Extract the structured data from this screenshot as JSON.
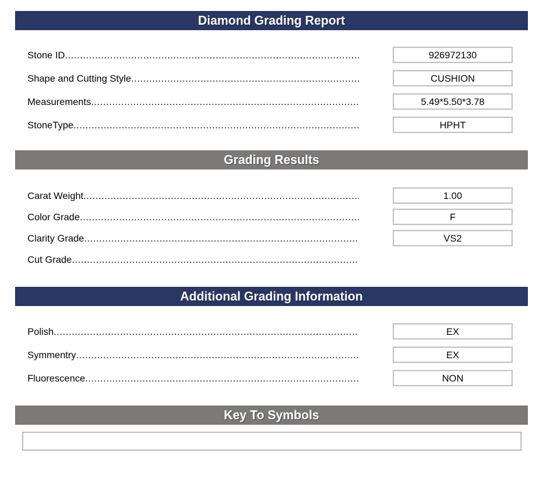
{
  "report": {
    "colors": {
      "navy_header": "#293764",
      "gray_header": "#7d7979",
      "box_border": "#c6c6c6"
    },
    "leader_dots": "................................................................................................................................................................................................",
    "sections": [
      {
        "title": "Diamond Grading Report",
        "style": "navy",
        "fields": [
          {
            "label": "Stone ID",
            "value": "926972130"
          },
          {
            "label": "Shape and Cutting Style",
            "value": "CUSHION"
          },
          {
            "label": "Measurements",
            "value": "5.49*5.50*3.78"
          },
          {
            "label": "StoneType",
            "value": "HPHT"
          }
        ]
      },
      {
        "title": "Grading Results",
        "style": "gray",
        "fields": [
          {
            "label": "Carat Weight",
            "value": "1.00"
          },
          {
            "label": "Color Grade",
            "value": "F"
          },
          {
            "label": "Clarity Grade",
            "value": "VS2"
          },
          {
            "label": "Cut Grade",
            "value": ""
          }
        ]
      },
      {
        "title": "Additional Grading Information",
        "style": "navy",
        "fields": [
          {
            "label": "Polish",
            "value": "EX"
          },
          {
            "label": "Symmentry",
            "value": "EX"
          },
          {
            "label": "Fluorescence",
            "value": "NON"
          }
        ]
      },
      {
        "title": "Key To Symbols",
        "style": "gray",
        "fields": [],
        "key_box_content": ""
      }
    ]
  }
}
